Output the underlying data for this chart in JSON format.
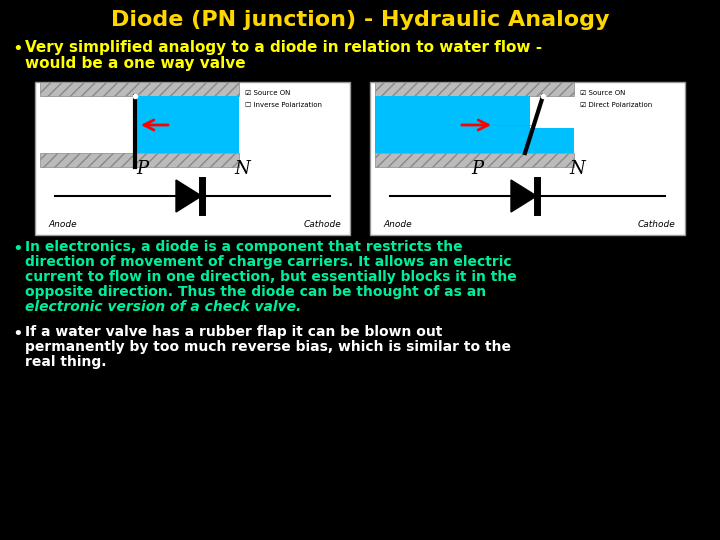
{
  "title": "Diode (PN junction) - Hydraulic Analogy",
  "title_color": "#FFD700",
  "bg_color": "#000000",
  "bullet1_line1": "Very simplified analogy to a diode in relation to water flow -",
  "bullet1_line2": "would be a one way valve",
  "bullet1_color": "#FFFF00",
  "bullet2_lines": [
    "In electronics, a diode is a component that restricts the",
    "direction of movement of charge carriers. It allows an electric",
    "current to flow in one direction, but essentially blocks it in the",
    "opposite direction. Thus the diode can be thought of as an"
  ],
  "bullet2_italic": "electronic version of a check valve.",
  "bullet2_color": "#00EE99",
  "bullet3_lines": [
    "If a water valve has a rubber flap it can be blown out",
    "permanently by too much reverse bias, which is similar to the",
    "real thing."
  ],
  "bullet3_color": "#FFFFFF",
  "water_color": "#00BFFF",
  "wall_color": "#BBBBBB",
  "box_bg": "#FFFFFF",
  "diode_bg": "#FFFFFF"
}
